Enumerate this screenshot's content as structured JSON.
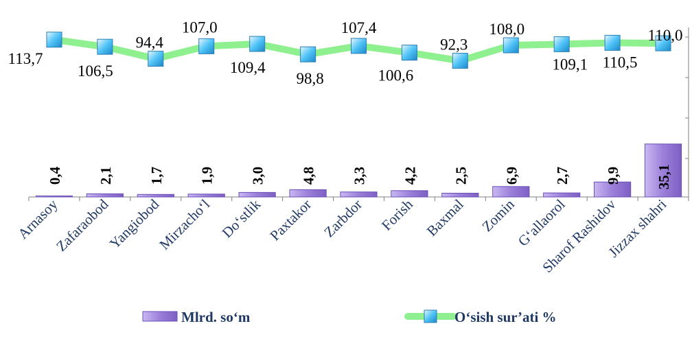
{
  "chart_data": {
    "type": "bar",
    "categories": [
      "Arnasoy",
      "Zafaraobod",
      "Yangiobod",
      "Mirzacho‘l",
      "Do‘stlik",
      "Paxtakor",
      "Zarbdor",
      "Forish",
      "Baxmal",
      "Zomin",
      "G‘allaorol",
      "Sharof Rashidov",
      "Jizzax shahri"
    ],
    "series": [
      {
        "name": "Mlrd. so‘m",
        "type": "bar",
        "values": [
          0.4,
          2.1,
          1.7,
          1.9,
          3.0,
          4.8,
          3.3,
          4.2,
          2.5,
          6.9,
          2.7,
          9.9,
          35.1
        ],
        "labels": [
          "0,4",
          "2,1",
          "1,7",
          "1,9",
          "3,0",
          "4,8",
          "3,3",
          "4,2",
          "2,5",
          "6,9",
          "2,7",
          "9,9",
          "35,1"
        ],
        "color": "#9b7fd9"
      },
      {
        "name": "O‘sish sur’ati %",
        "type": "line",
        "values": [
          113.7,
          106.5,
          94.4,
          107.0,
          109.4,
          98.8,
          107.4,
          100.6,
          92.3,
          108.0,
          109.1,
          110.5,
          110.0
        ],
        "labels": [
          "113,7",
          "106,5",
          "94,4",
          "107,0",
          "109,4",
          "98,8",
          "107,4",
          "100,6",
          "92,3",
          "108,0",
          "109,1",
          "110,5",
          "110,0"
        ],
        "color": "#8ef08e",
        "marker_color": "#4fc3f7"
      }
    ],
    "title": "",
    "xlabel": "",
    "ylabel": "",
    "legend_position": "bottom",
    "grid": false
  }
}
